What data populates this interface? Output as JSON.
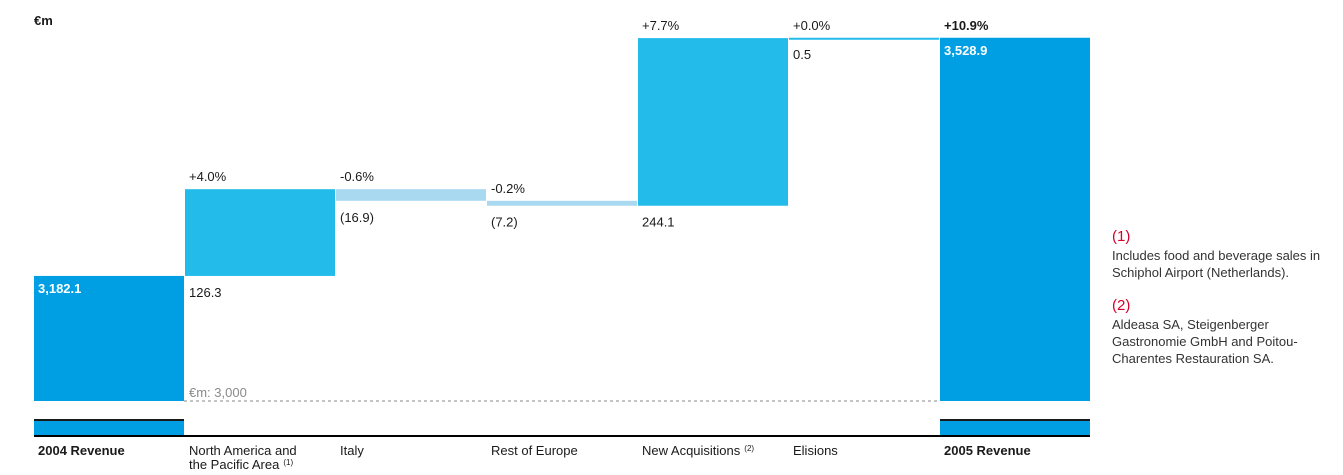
{
  "chart_data": {
    "type": "bar",
    "subtype": "waterfall",
    "unit_label": "€m",
    "baseline_label": "€m: 3,000",
    "baseline_value": 3000,
    "ylim": [
      3000,
      3530
    ],
    "colors": {
      "total": "#009fe3",
      "increase": "#23bbe9",
      "decrease": "#a8d9f1",
      "baseline_line": "#888888",
      "axis": "#000000"
    },
    "steps": [
      {
        "category": "2004 Revenue",
        "category_bold": true,
        "footnote": "",
        "kind": "total",
        "start": 3000,
        "end": 3182.1,
        "value_label": "3,182.1",
        "pct_label": ""
      },
      {
        "category": "North America and the Pacific Area",
        "category_bold": false,
        "footnote": "(1)",
        "kind": "increase",
        "start": 3182.1,
        "end": 3308.4,
        "value_label": "126.3",
        "pct_label": "+4.0%"
      },
      {
        "category": "Italy",
        "category_bold": false,
        "footnote": "",
        "kind": "decrease",
        "start": 3308.4,
        "end": 3291.5,
        "value_label": "(16.9)",
        "pct_label": "-0.6%"
      },
      {
        "category": "Rest of Europe",
        "category_bold": false,
        "footnote": "",
        "kind": "decrease",
        "start": 3291.5,
        "end": 3284.3,
        "value_label": "(7.2)",
        "pct_label": "-0.2%"
      },
      {
        "category": "New Acquisitions",
        "category_bold": false,
        "footnote": "(2)",
        "kind": "increase",
        "start": 3284.3,
        "end": 3528.4,
        "value_label": "244.1",
        "pct_label": "+7.7%"
      },
      {
        "category": "Elisions",
        "category_bold": false,
        "footnote": "",
        "kind": "increase",
        "start": 3528.4,
        "end": 3528.9,
        "value_label": "0.5",
        "pct_label": "+0.0%"
      },
      {
        "category": "2005 Revenue",
        "category_bold": true,
        "footnote": "",
        "kind": "total",
        "start": 3000,
        "end": 3528.9,
        "value_label": "3,528.9",
        "pct_label": "+10.9%"
      }
    ]
  },
  "notes": [
    {
      "mark": "(1)",
      "text": "Includes food and beverage sales in Schiphol Airport (Netherlands)."
    },
    {
      "mark": "(2)",
      "text": "Aldeasa SA, Steigenberger Gastronomie GmbH and Poitou-Charentes Restauration SA."
    }
  ]
}
